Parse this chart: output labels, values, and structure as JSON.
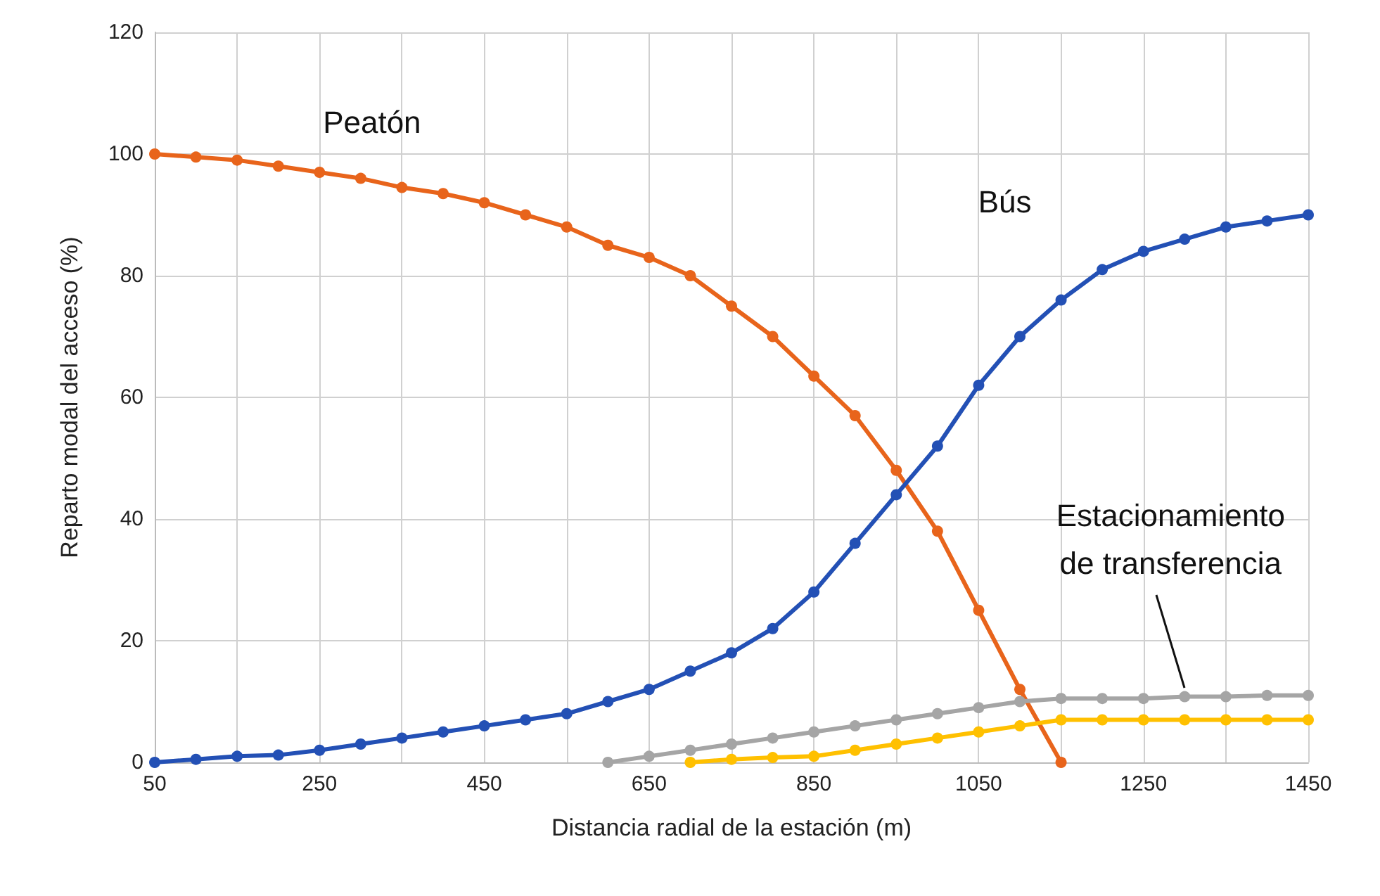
{
  "chart_data": {
    "type": "line",
    "xlabel": "Distancia radial de la estación (m)",
    "ylabel": "Reparto modal del acceso (%)",
    "xlim": [
      50,
      1450
    ],
    "xticks": [
      50,
      {
        "value": 150,
        "label": null
      },
      250,
      {
        "value": 350,
        "label": null
      },
      450,
      {
        "value": 550,
        "label": null
      },
      650,
      {
        "value": 750,
        "label": null
      },
      850,
      {
        "value": 950,
        "label": null
      },
      1050,
      {
        "value": 1150,
        "label": null
      },
      1250,
      {
        "value": 1350,
        "label": null
      },
      1450
    ],
    "ylim": [
      0,
      120
    ],
    "yticks": [
      0,
      20,
      40,
      60,
      80,
      100,
      120
    ],
    "grid": true,
    "legend": false,
    "marker": "circle",
    "line_style": "solid",
    "series": [
      {
        "name": "Peatón",
        "color": "#e8641b",
        "x": [
          50,
          100,
          150,
          200,
          250,
          300,
          350,
          400,
          450,
          500,
          550,
          600,
          650,
          700,
          750,
          800,
          850,
          900,
          950,
          1000,
          1050,
          1100,
          1150
        ],
        "values": [
          100,
          99.5,
          99,
          98,
          97,
          96,
          94.5,
          93.5,
          92,
          90,
          88,
          85,
          83,
          80,
          75,
          70,
          63.5,
          57,
          48,
          38,
          25,
          12,
          0
        ]
      },
      {
        "name": "Bús",
        "color": "#2350b5",
        "x": [
          50,
          100,
          150,
          200,
          250,
          300,
          350,
          400,
          450,
          500,
          550,
          600,
          650,
          700,
          750,
          800,
          850,
          900,
          950,
          1000,
          1050,
          1100,
          1150,
          1200,
          1250,
          1300,
          1350,
          1400,
          1450
        ],
        "values": [
          0,
          0.5,
          1,
          1.2,
          2,
          3,
          4,
          5,
          6,
          7,
          8,
          10,
          12,
          15,
          18,
          22,
          28,
          36,
          44,
          52,
          62,
          70,
          76,
          81,
          84,
          86,
          88,
          89,
          90
        ]
      },
      {
        "name": "Estacionamiento\nde transferencia",
        "color": "#a5a5a5",
        "x": [
          600,
          650,
          700,
          750,
          800,
          850,
          900,
          950,
          1000,
          1050,
          1100,
          1150,
          1200,
          1250,
          1300,
          1350,
          1400,
          1450
        ],
        "values": [
          0,
          1,
          2,
          3,
          4,
          5,
          6,
          7,
          8,
          9,
          10,
          10.5,
          10.5,
          10.5,
          10.8,
          10.8,
          11,
          11
        ]
      },
      {
        "color": "#ffc000",
        "x": [
          700,
          750,
          800,
          850,
          900,
          950,
          1000,
          1050,
          1100,
          1150,
          1200,
          1250,
          1300,
          1350,
          1400,
          1450
        ],
        "values": [
          0,
          0.5,
          0.8,
          1,
          2,
          3,
          4,
          5,
          6,
          7,
          7,
          7,
          7,
          7,
          7,
          7
        ]
      }
    ]
  }
}
